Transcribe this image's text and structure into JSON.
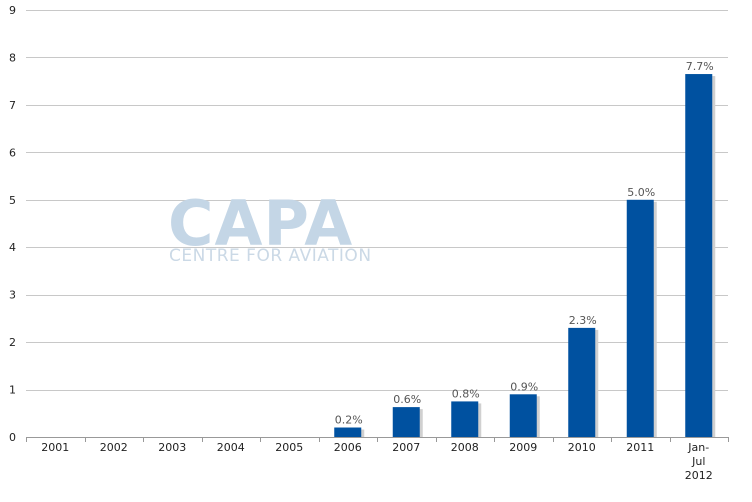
{
  "chart_data": {
    "type": "bar",
    "categories": [
      "2001",
      "2002",
      "2003",
      "2004",
      "2005",
      "2006",
      "2007",
      "2008",
      "2009",
      "2010",
      "2011",
      "Jan-\nJul\n2012"
    ],
    "values": [
      0,
      0,
      0,
      0,
      0,
      0.2,
      0.63,
      0.75,
      0.9,
      2.3,
      5.0,
      7.65
    ],
    "data_labels": [
      "",
      "",
      "",
      "",
      "",
      "0.2%",
      "0.6%",
      "0.8%",
      "0.9%",
      "2.3%",
      "5.0%",
      "7.7%"
    ],
    "yticks": [
      "0",
      "1",
      "2",
      "3",
      "4",
      "5",
      "6",
      "7",
      "8",
      "9"
    ],
    "ylim": [
      0,
      9
    ],
    "grid": true,
    "bar_color": "#0051a0",
    "title": "",
    "xlabel": "",
    "ylabel": ""
  },
  "watermark": {
    "logo": "CAPA",
    "tagline": "CENTRE FOR AVIATION"
  }
}
